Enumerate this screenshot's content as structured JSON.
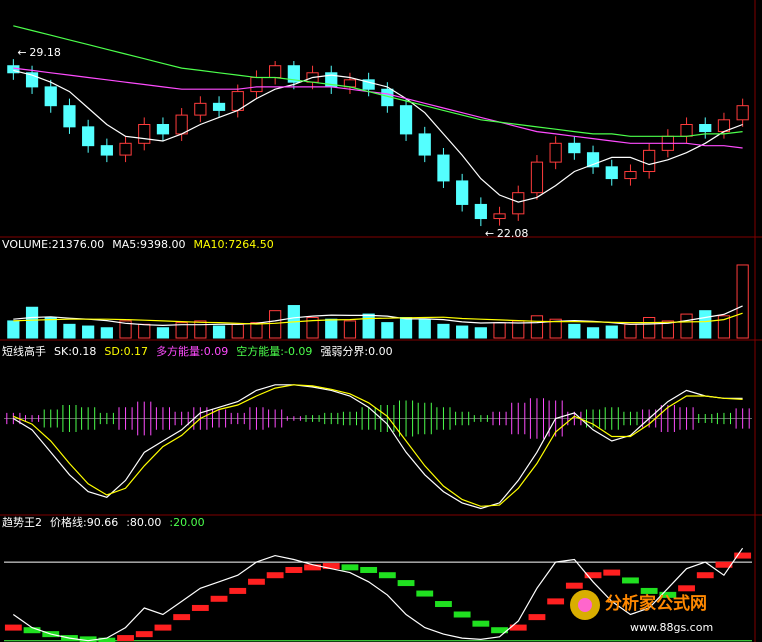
{
  "chart_data": [
    {
      "type": "candlestick",
      "open": [
        28.9,
        28.6,
        28.0,
        27.2,
        26.3,
        25.5,
        25.1,
        25.6,
        26.4,
        26.0,
        26.8,
        27.3,
        27.0,
        27.8,
        28.4,
        28.9,
        28.2,
        28.6,
        28.0,
        28.3,
        27.9,
        27.2,
        26.0,
        25.1,
        24.0,
        23.0,
        22.4,
        22.6,
        23.5,
        24.8,
        25.6,
        25.2,
        24.6,
        24.1,
        24.4,
        25.3,
        25.9,
        26.4,
        26.1,
        26.6
      ],
      "high": [
        29.18,
        28.9,
        28.3,
        27.5,
        26.6,
        25.8,
        25.9,
        26.7,
        26.7,
        27.1,
        27.6,
        27.6,
        28.1,
        28.7,
        29.1,
        29.1,
        28.9,
        28.9,
        28.6,
        28.6,
        28.2,
        27.5,
        26.3,
        25.4,
        24.3,
        23.3,
        22.9,
        23.8,
        25.1,
        25.9,
        25.9,
        25.5,
        24.9,
        24.7,
        25.6,
        26.2,
        26.7,
        26.7,
        26.9,
        27.5
      ],
      "low": [
        28.3,
        27.7,
        26.9,
        26.0,
        25.2,
        24.8,
        24.8,
        25.3,
        25.7,
        25.7,
        26.5,
        26.7,
        26.7,
        27.5,
        28.1,
        27.9,
        27.9,
        27.7,
        27.7,
        27.6,
        26.9,
        25.7,
        24.8,
        23.7,
        22.7,
        22.08,
        22.1,
        22.3,
        23.2,
        24.5,
        24.9,
        24.3,
        23.8,
        23.8,
        24.1,
        25.0,
        25.6,
        25.8,
        25.8,
        26.3
      ],
      "close": [
        28.6,
        28.0,
        27.2,
        26.3,
        25.5,
        25.1,
        25.6,
        26.4,
        26.0,
        26.8,
        27.3,
        27.0,
        27.8,
        28.4,
        28.9,
        28.2,
        28.6,
        28.0,
        28.3,
        27.9,
        27.2,
        26.0,
        25.1,
        24.0,
        23.0,
        22.4,
        22.6,
        23.5,
        24.8,
        25.6,
        25.2,
        24.6,
        24.1,
        24.4,
        25.3,
        25.9,
        26.4,
        26.1,
        26.6,
        27.2
      ],
      "up_color": "#ff3c3c",
      "down_color": "#54ffff",
      "lines": [
        {
          "color": "#ffffff",
          "values": [
            28.7,
            28.5,
            28.2,
            27.8,
            27.1,
            26.4,
            25.9,
            25.8,
            25.7,
            26.0,
            26.4,
            26.7,
            27.0,
            27.5,
            27.9,
            28.1,
            28.4,
            28.5,
            28.4,
            28.2,
            28.0,
            27.5,
            26.9,
            26.0,
            25.1,
            24.1,
            23.4,
            23.1,
            23.3,
            23.8,
            24.4,
            24.7,
            25.0,
            25.0,
            24.7,
            24.9,
            25.2,
            25.6,
            26.1,
            26.4
          ]
        },
        {
          "color": "#ff4cff",
          "values": [
            28.8,
            28.7,
            28.6,
            28.5,
            28.4,
            28.3,
            28.2,
            28.1,
            28.0,
            27.9,
            27.9,
            27.9,
            27.9,
            28.0,
            28.0,
            28.0,
            28.0,
            28.0,
            27.9,
            27.8,
            27.7,
            27.5,
            27.3,
            27.1,
            26.9,
            26.7,
            26.5,
            26.3,
            26.1,
            26.0,
            25.9,
            25.8,
            25.7,
            25.6,
            25.6,
            25.6,
            25.6,
            25.5,
            25.5,
            25.4
          ]
        },
        {
          "color": "#4cff4c",
          "values": [
            30.6,
            30.4,
            30.2,
            30.0,
            29.8,
            29.6,
            29.4,
            29.2,
            29.0,
            28.8,
            28.7,
            28.6,
            28.5,
            28.4,
            28.4,
            28.3,
            28.2,
            28.1,
            28.0,
            27.8,
            27.6,
            27.4,
            27.2,
            27.0,
            26.8,
            26.6,
            26.5,
            26.4,
            26.3,
            26.2,
            26.1,
            26.0,
            26.0,
            25.9,
            25.9,
            25.9,
            25.9,
            26.0,
            26.0,
            26.1
          ]
        }
      ],
      "annotations": [
        {
          "index": 0,
          "value": 29.18
        },
        {
          "index": 25,
          "value": 22.08
        }
      ],
      "ylim": [
        21.7,
        31.1
      ]
    },
    {
      "type": "volume",
      "legend": [
        {
          "text": "VOLUME:21376.00",
          "color": "#ffffff"
        },
        {
          "text": "MA5:9398.00",
          "color": "#ffffff"
        },
        {
          "text": "MA10:7264.50",
          "color": "#ffff00"
        }
      ],
      "values": [
        5000,
        9000,
        6000,
        4000,
        3500,
        3000,
        5000,
        4000,
        3000,
        4500,
        5000,
        3500,
        4000,
        4500,
        8000,
        9500,
        6000,
        5500,
        5000,
        7000,
        4500,
        6000,
        5500,
        4000,
        3500,
        3000,
        4500,
        5000,
        6500,
        5500,
        4000,
        3000,
        3500,
        4000,
        6000,
        5000,
        7000,
        8000,
        6500,
        21376
      ],
      "lines": [
        {
          "color": "#ffffff",
          "values": [
            5500,
            6000,
            6200,
            5800,
            5500,
            5100,
            4300,
            3900,
            3700,
            3900,
            3900,
            4000,
            4000,
            4300,
            5000,
            5900,
            6400,
            6700,
            6600,
            6600,
            6400,
            5600,
            5600,
            5400,
            4700,
            4400,
            4500,
            4400,
            4500,
            4900,
            5100,
            4900,
            4500,
            4000,
            4100,
            4300,
            5100,
            6000,
            6900,
            9398
          ]
        },
        {
          "color": "#ffff00",
          "values": [
            5000,
            5200,
            5400,
            5500,
            5500,
            5500,
            5400,
            5200,
            5000,
            4800,
            4600,
            4500,
            4300,
            4100,
            4300,
            4700,
            5100,
            5300,
            5400,
            5700,
            5800,
            5900,
            6000,
            6100,
            5700,
            5500,
            5300,
            5100,
            4900,
            4800,
            4800,
            4700,
            4600,
            4500,
            4500,
            4600,
            4700,
            4800,
            5400,
            7264.5
          ]
        }
      ],
      "ylim": [
        0,
        24000
      ]
    },
    {
      "type": "energy",
      "legend": [
        {
          "text": "短线高手",
          "color": "#ffffff"
        },
        {
          "text": "SK:0.18",
          "color": "#ffffff"
        },
        {
          "text": "SD:0.17",
          "color": "#ffff00"
        },
        {
          "text": "多方能量:0.09",
          "color": "#ff4cff"
        },
        {
          "text": "空方能量:-0.09",
          "color": "#4cff4c"
        },
        {
          "text": "强弱分界:0.00",
          "color": "#ffffff"
        }
      ],
      "bull": [
        0.05,
        0.03,
        -0.08,
        -0.12,
        -0.1,
        -0.05,
        0.1,
        0.15,
        0.1,
        0.06,
        0.1,
        0.08,
        0.05,
        0.1,
        0.08,
        0.02,
        -0.03,
        -0.05,
        -0.06,
        -0.1,
        -0.12,
        -0.16,
        -0.14,
        -0.1,
        -0.06,
        -0.03,
        0.06,
        0.14,
        0.18,
        0.16,
        0.06,
        -0.08,
        -0.1,
        -0.06,
        0.08,
        0.12,
        0.1,
        -0.04,
        -0.05,
        0.09
      ],
      "bear": [
        -0.05,
        -0.03,
        0.08,
        0.12,
        0.1,
        0.05,
        -0.1,
        -0.15,
        -0.1,
        -0.06,
        -0.1,
        -0.08,
        -0.05,
        -0.1,
        -0.08,
        -0.02,
        0.03,
        0.05,
        0.06,
        0.1,
        0.12,
        0.16,
        0.14,
        0.1,
        0.06,
        0.03,
        -0.06,
        -0.14,
        -0.18,
        -0.16,
        -0.06,
        0.08,
        0.1,
        0.06,
        -0.08,
        -0.12,
        -0.1,
        0.04,
        0.05,
        -0.09
      ],
      "bull_color": "#ff4cff",
      "bear_color": "#4cff4c",
      "boundary": 0,
      "lines": [
        {
          "color": "#ffffff",
          "values": [
            0.0,
            -0.1,
            -0.3,
            -0.5,
            -0.65,
            -0.7,
            -0.55,
            -0.3,
            -0.2,
            -0.1,
            0.05,
            0.1,
            0.15,
            0.25,
            0.3,
            0.3,
            0.28,
            0.25,
            0.2,
            0.1,
            -0.05,
            -0.3,
            -0.5,
            -0.65,
            -0.75,
            -0.8,
            -0.75,
            -0.55,
            -0.3,
            0.0,
            0.05,
            -0.1,
            -0.2,
            -0.15,
            0.0,
            0.15,
            0.25,
            0.2,
            0.18,
            0.18
          ]
        },
        {
          "color": "#ffff00",
          "values": [
            0.02,
            -0.05,
            -0.2,
            -0.4,
            -0.58,
            -0.68,
            -0.62,
            -0.42,
            -0.25,
            -0.15,
            0.0,
            0.08,
            0.12,
            0.2,
            0.27,
            0.3,
            0.29,
            0.26,
            0.22,
            0.14,
            0.02,
            -0.2,
            -0.42,
            -0.6,
            -0.72,
            -0.78,
            -0.77,
            -0.62,
            -0.4,
            -0.12,
            0.02,
            -0.05,
            -0.16,
            -0.16,
            -0.05,
            0.1,
            0.2,
            0.2,
            0.18,
            0.17
          ]
        }
      ],
      "ylim": [
        -0.84,
        0.52
      ]
    },
    {
      "type": "trend",
      "legend": [
        {
          "text": "趋势王2",
          "color": "#ffffff"
        },
        {
          "text": "价格线:90.66",
          "color": "#ffffff"
        },
        {
          "text": ":80.00",
          "color": "#ffffff"
        },
        {
          "text": ":20.00",
          "color": "#4cff4c"
        }
      ],
      "price": [
        40,
        30,
        25,
        22,
        20,
        22,
        30,
        45,
        40,
        50,
        60,
        65,
        70,
        80,
        85,
        82,
        78,
        75,
        72,
        65,
        55,
        40,
        30,
        25,
        22,
        21,
        23,
        35,
        60,
        80,
        82,
        65,
        50,
        40,
        45,
        60,
        75,
        80,
        70,
        90.66
      ],
      "price_color": "#ffffff",
      "trend": [
        30,
        28,
        25,
        22,
        21,
        20,
        22,
        25,
        30,
        38,
        45,
        52,
        58,
        65,
        70,
        74,
        76,
        77,
        76,
        74,
        70,
        64,
        56,
        48,
        40,
        33,
        28,
        30,
        38,
        50,
        62,
        70,
        72,
        66,
        58,
        55,
        60,
        70,
        78,
        85
      ],
      "rise_color": "#ff2020",
      "fall_color": "#20e020",
      "hlines": [
        {
          "value": 80,
          "color": "#ffffff"
        },
        {
          "value": 20,
          "color": "#4cff4c"
        }
      ],
      "ylim": [
        19,
        103
      ]
    }
  ],
  "watermark": {
    "name": "分析家公式网",
    "url": "www.88gs.com"
  }
}
